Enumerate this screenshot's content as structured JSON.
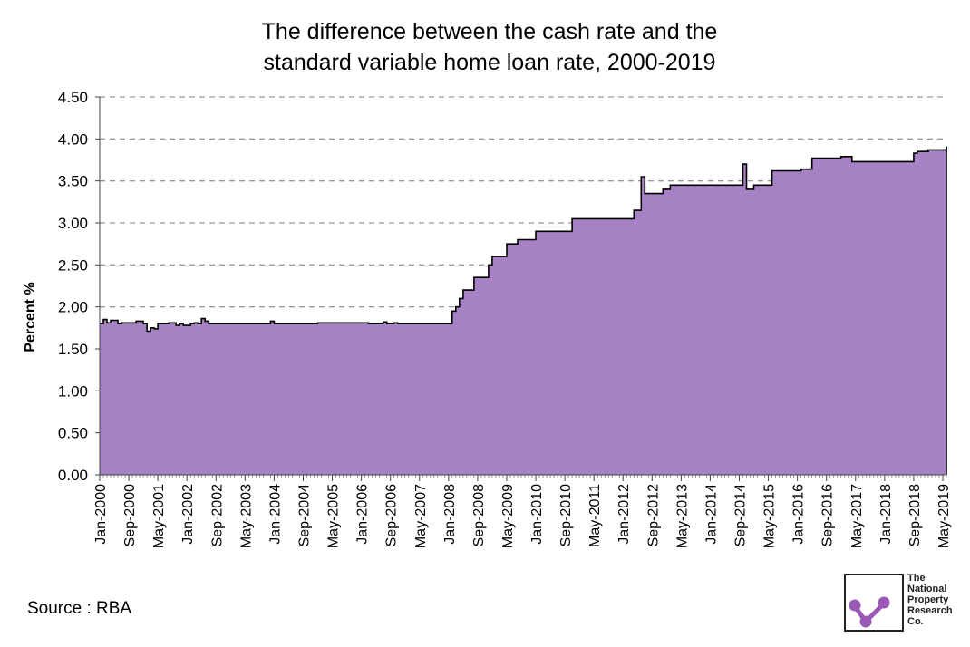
{
  "chart_data": {
    "type": "area",
    "title_lines": [
      "The difference between the cash rate and the",
      "standard variable home loan rate, 2000-2019"
    ],
    "xlabel": "",
    "ylabel": "Percent %",
    "ylim": [
      0,
      4.5
    ],
    "yticks": [
      "0.00",
      "0.50",
      "1.00",
      "1.50",
      "2.00",
      "2.50",
      "3.00",
      "3.50",
      "4.00",
      "4.50"
    ],
    "xtick_labels": [
      "Jan-2000",
      "Sep-2000",
      "May-2001",
      "Jan-2002",
      "Sep-2002",
      "May-2003",
      "Jan-2004",
      "Sep-2004",
      "May-2005",
      "Jan-2006",
      "Sep-2006",
      "May-2007",
      "Jan-2008",
      "Sep-2008",
      "May-2009",
      "Jan-2010",
      "Sep-2010",
      "May-2011",
      "Jan-2012",
      "Sep-2012",
      "May-2013",
      "Jan-2014",
      "Sep-2014",
      "May-2015",
      "Jan-2016",
      "Sep-2016",
      "May-2017",
      "Jan-2018",
      "Sep-2018",
      "May-2019"
    ],
    "grid": "horizontal-dashed",
    "fill_color": "#a681c4",
    "line_color": "#000000",
    "series": [
      {
        "x": [
          "Jan-2000",
          "Feb-2000",
          "Mar-2000",
          "Apr-2000",
          "Jun-2000",
          "Jul-2000",
          "Nov-2000",
          "Jan-2001",
          "Feb-2001",
          "Mar-2001",
          "Apr-2001",
          "May-2001",
          "Jun-2001",
          "Aug-2001",
          "Oct-2001",
          "Nov-2001",
          "Dec-2001",
          "Feb-2002",
          "Mar-2002",
          "Apr-2002",
          "May-2002",
          "Jun-2002",
          "Jul-2002",
          "Sep-2002",
          "Nov-2003",
          "Dec-2003",
          "Jan-2004",
          "Nov-2004",
          "Jan-2005",
          "Mar-2006",
          "Apr-2006",
          "Jun-2006",
          "Jul-2006",
          "Aug-2006",
          "Oct-2006",
          "Nov-2006",
          "Dec-2006",
          "Jan-2008",
          "Feb-2008",
          "Mar-2008",
          "Apr-2008",
          "May-2008",
          "Jun-2008",
          "Jul-2008",
          "Aug-2008",
          "Sep-2008",
          "Oct-2008",
          "Dec-2008",
          "Jan-2009",
          "Feb-2009",
          "Mar-2009",
          "May-2009",
          "Jun-2009",
          "Aug-2009",
          "Sep-2009",
          "Oct-2009",
          "Nov-2009",
          "Dec-2009",
          "Jan-2010",
          "Mar-2010",
          "Jul-2010",
          "Oct-2010",
          "Nov-2010",
          "Dec-2010",
          "Jan-2012",
          "Feb-2012",
          "Apr-2012",
          "May-2012",
          "Jun-2012",
          "Jul-2012",
          "Oct-2012",
          "Nov-2012",
          "Dec-2012",
          "Jan-2013",
          "Feb-2013",
          "May-2013",
          "Jun-2013",
          "Aug-2014",
          "Sep-2014",
          "Oct-2014",
          "Nov-2014",
          "Dec-2014",
          "Jan-2015",
          "Feb-2015",
          "Mar-2015",
          "May-2015",
          "Jun-2015",
          "Oct-2015",
          "Nov-2015",
          "Jan-2016",
          "Feb-2016",
          "Apr-2016",
          "May-2016",
          "Jul-2016",
          "Aug-2016",
          "Dec-2016",
          "Jan-2017",
          "Mar-2017",
          "Apr-2017",
          "May-2017",
          "Jul-2018",
          "Aug-2018",
          "Sep-2018",
          "Oct-2018",
          "Dec-2018",
          "Jan-2019",
          "Feb-2019",
          "Mar-2019",
          "Apr-2019",
          "May-2019",
          "Jun-2019"
        ],
        "values": [
          1.8,
          1.85,
          1.81,
          1.84,
          1.8,
          1.81,
          1.83,
          1.8,
          1.71,
          1.75,
          1.74,
          1.8,
          1.8,
          1.81,
          1.78,
          1.8,
          1.78,
          1.8,
          1.81,
          1.8,
          1.86,
          1.83,
          1.8,
          1.8,
          1.8,
          1.83,
          1.8,
          1.8,
          1.81,
          1.8,
          1.8,
          1.8,
          1.82,
          1.8,
          1.81,
          1.8,
          1.8,
          1.8,
          1.95,
          2.0,
          2.1,
          2.2,
          2.2,
          2.2,
          2.35,
          2.35,
          2.35,
          2.5,
          2.6,
          2.6,
          2.6,
          2.75,
          2.75,
          2.8,
          2.8,
          2.8,
          2.8,
          2.8,
          2.9,
          2.9,
          2.9,
          2.9,
          3.05,
          3.05,
          3.05,
          3.05,
          3.15,
          3.15,
          3.55,
          3.35,
          3.35,
          3.35,
          3.4,
          3.4,
          3.45,
          3.45,
          3.45,
          3.45,
          3.45,
          3.7,
          3.4,
          3.4,
          3.45,
          3.45,
          3.45,
          3.45,
          3.62,
          3.62,
          3.62,
          3.62,
          3.64,
          3.64,
          3.77,
          3.77,
          3.77,
          3.77,
          3.79,
          3.79,
          3.73,
          3.73,
          3.73,
          3.73,
          3.83,
          3.85,
          3.85,
          3.87,
          3.87,
          3.87,
          3.87,
          3.87,
          3.91
        ]
      }
    ]
  },
  "source_text": "Source : RBA",
  "logo": {
    "text_lines": [
      "The",
      "National",
      "Property",
      "Research",
      "Co."
    ],
    "accent": "#9b59b6"
  }
}
